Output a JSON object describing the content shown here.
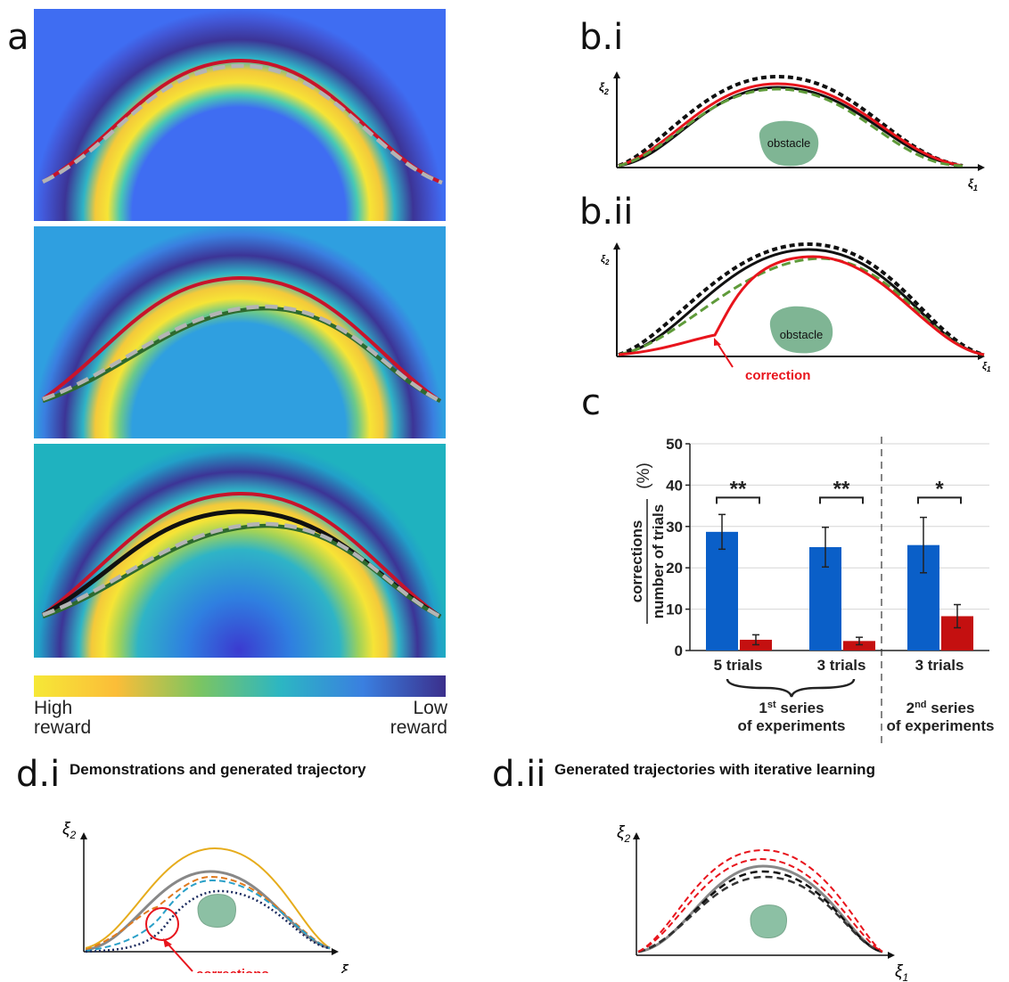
{
  "panels": {
    "a": "a",
    "bi": "b.i",
    "bii": "b.ii",
    "c": "c",
    "di": "d.i",
    "dii": "d.ii"
  },
  "titles": {
    "di": "Demonstrations and generated trajectory",
    "dii": "Generated trajectories with iterative learning"
  },
  "colorbar": {
    "left_line1": "High",
    "left_line2": "reward",
    "right_line1": "Low",
    "right_line2": "reward",
    "colors": [
      "#f6e837",
      "#fbbd38",
      "#7cc561",
      "#2cb6c3",
      "#3a7fe0",
      "#3b2f8c"
    ]
  },
  "axes": {
    "xi1": "ξ",
    "xi1_sub": "1",
    "xi2": "ξ",
    "xi2_sub": "2"
  },
  "labels": {
    "obstacle": "obstacle",
    "correction": "correction",
    "corrections": "corrections"
  },
  "colors": {
    "red": "#e8141c",
    "green_dashed": "#5f9b3a",
    "obstacle": "#7fb594",
    "blue_bar": "#0a5fc8",
    "red_bar": "#c41010"
  },
  "chart_data": {
    "type": "bar",
    "ylabel_numerator": "corrections",
    "ylabel_denominator": "number of trials",
    "ylabel_unit": "(%)",
    "ylim": [
      0,
      50
    ],
    "yticks": [
      "0",
      "10",
      "20",
      "30",
      "40",
      "50"
    ],
    "categories": [
      "5 trials",
      "3 trials",
      "3 trials"
    ],
    "series": [
      {
        "values": [
          28.7,
          25.0,
          25.5
        ],
        "errors": [
          4.2,
          4.8,
          6.7
        ]
      },
      {
        "values": [
          2.6,
          2.3,
          8.3
        ],
        "errors": [
          1.2,
          0.9,
          2.8
        ]
      }
    ],
    "significance": [
      "**",
      "**",
      "*"
    ],
    "group_labels": [
      {
        "prefix": "1",
        "sup": "st",
        "suffix": " series",
        "line2": "of experiments"
      },
      {
        "prefix": "2",
        "sup": "nd",
        "suffix": " series",
        "line2": "of experiments"
      }
    ],
    "grid": true
  }
}
